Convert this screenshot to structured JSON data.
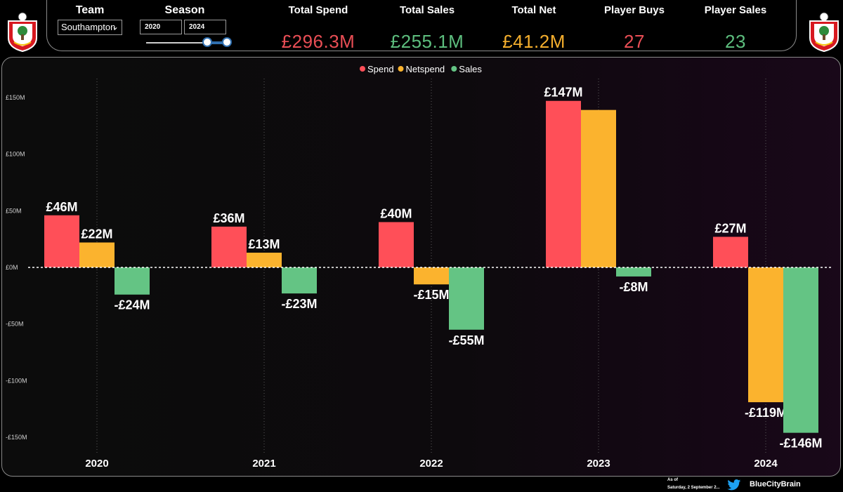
{
  "header": {
    "team_label": "Team",
    "team_value": "Southampton",
    "season_label": "Season",
    "season_from": "2020",
    "season_to": "2024",
    "kpis": [
      {
        "label": "Total Spend",
        "value": "£296.3M",
        "color": "#e94e55"
      },
      {
        "label": "Total Sales",
        "value": "£255.1M",
        "color": "#5dbe7e"
      },
      {
        "label": "Total Net",
        "value": "£41.2M",
        "color": "#f4ae2d"
      },
      {
        "label": "Player Buys",
        "value": "27",
        "color": "#e94e55"
      },
      {
        "label": "Player Sales",
        "value": "23",
        "color": "#5dbe7e"
      }
    ],
    "crest_icon": "southampton-crest-icon"
  },
  "footer": {
    "as_of_label": "As of",
    "as_of_date": "Saturday, 2 September 2...",
    "handle": "BlueCityBrain",
    "twitter_icon": "twitter-bird-icon"
  },
  "chart_data": {
    "type": "bar",
    "categories": [
      "2020",
      "2021",
      "2022",
      "2023",
      "2024"
    ],
    "series": [
      {
        "name": "Spend",
        "color": "#ff4f58",
        "values": [
          46,
          36,
          40,
          147,
          27
        ],
        "labels": [
          "£46M",
          "£36M",
          "£40M",
          "£147M",
          "£27M"
        ]
      },
      {
        "name": "Netspend",
        "color": "#fbb32e",
        "values": [
          22,
          13,
          -15,
          139,
          -119
        ],
        "labels": [
          "£22M",
          "£13M",
          "-£15M",
          "",
          "-£119M"
        ]
      },
      {
        "name": "Sales",
        "color": "#64c484",
        "values": [
          -24,
          -23,
          -55,
          -8,
          -146
        ],
        "labels": [
          "-£24M",
          "-£23M",
          "-£55M",
          "-£8M",
          "-£146M"
        ]
      }
    ],
    "yticks": [
      150,
      100,
      50,
      0,
      -50,
      -100,
      -150
    ],
    "ytick_labels": [
      "£150M",
      "£100M",
      "£50M",
      "£0M",
      "-£50M",
      "-£100M",
      "-£150M"
    ],
    "ylim": [
      -155,
      165
    ],
    "legend_position": "top-center",
    "grid": "vertical-dotted"
  }
}
